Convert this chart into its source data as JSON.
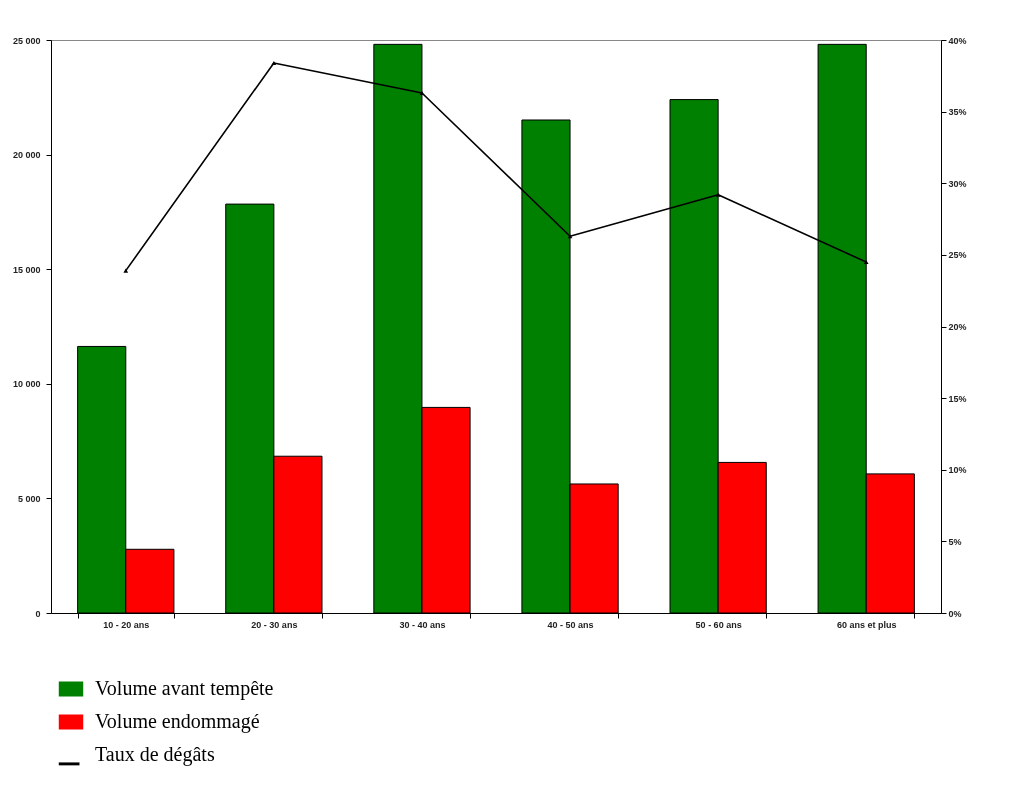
{
  "chart_data": {
    "type": "bar",
    "categories": [
      "10 - 20 ans",
      "20 - 30 ans",
      "30 - 40 ans",
      "40 - 50 ans",
      "50 - 60 ans",
      "60 ans et plus"
    ],
    "series": [
      {
        "name": "Volume avant tempête",
        "color": "#008000",
        "values": [
          11630,
          17840,
          24810,
          21510,
          22400,
          24810
        ]
      },
      {
        "name": "Volume endommagé",
        "color": "#ff0000",
        "values": [
          2780,
          6840,
          8970,
          5630,
          6570,
          6070
        ]
      },
      {
        "name": "Taux de dégâts",
        "type": "line",
        "axis": "y2",
        "color": "#000000",
        "values": [
          23.9,
          38.4,
          36.3,
          26.3,
          29.2,
          24.5
        ]
      }
    ],
    "ylim": [
      0,
      25000
    ],
    "yticks": [
      0,
      {
        "value": 5000,
        "label": "5 000"
      },
      {
        "value": 10000,
        "label": "10 000"
      },
      {
        "value": 15000,
        "label": "15 000"
      },
      {
        "value": 20000,
        "label": "20 000"
      },
      {
        "value": 25000,
        "label": "25 000"
      }
    ],
    "y2lim": [
      0,
      40
    ],
    "y2ticks": [
      {
        "value": 0,
        "label": "0%"
      },
      {
        "value": 5,
        "label": "5%"
      },
      {
        "value": 10,
        "label": "10%"
      },
      {
        "value": 15,
        "label": "15%"
      },
      {
        "value": 20,
        "label": "20%"
      },
      {
        "value": 25,
        "label": "25%"
      },
      {
        "value": 30,
        "label": "30%"
      },
      {
        "value": 35,
        "label": "35%"
      },
      {
        "value": 40,
        "label": "40%"
      }
    ],
    "grid": false,
    "legend": "bottom",
    "marker": "triangle",
    "line_style": "solid"
  }
}
